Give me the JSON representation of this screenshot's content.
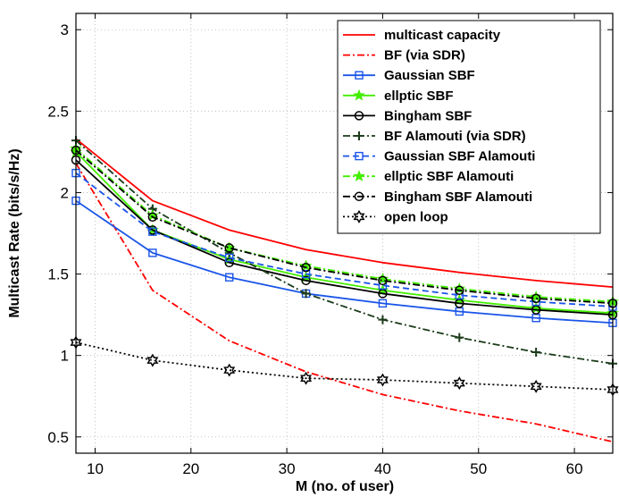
{
  "chart_data": {
    "type": "line",
    "title": "",
    "xlabel": "M (no. of user)",
    "ylabel": "Multicast Rate (bits/s/Hz)",
    "xlim": [
      8,
      64
    ],
    "ylim": [
      0.4,
      3.1
    ],
    "xticks": [
      10,
      20,
      30,
      40,
      50,
      60
    ],
    "yticks": [
      0.5,
      1,
      1.5,
      2,
      2.5,
      3
    ],
    "xtick_labels": [
      "10",
      "20",
      "30",
      "40",
      "50",
      "60"
    ],
    "ytick_labels": [
      "0.5",
      "1",
      "1.5",
      "2",
      "2.5",
      "3"
    ],
    "grid": true,
    "legend_position": "top-right",
    "x": [
      8,
      16,
      24,
      32,
      40,
      48,
      56,
      64
    ],
    "series": [
      {
        "name": "multicast capacity",
        "color": "#ff0000",
        "dash": "solid",
        "marker": "none",
        "values": [
          2.33,
          1.95,
          1.77,
          1.65,
          1.57,
          1.51,
          1.46,
          1.42
        ]
      },
      {
        "name": "BF (via SDR)",
        "color": "#ff0000",
        "dash": "dashdot",
        "marker": "none",
        "values": [
          2.18,
          1.4,
          1.09,
          0.9,
          0.76,
          0.66,
          0.58,
          0.47
        ]
      },
      {
        "name": "Gaussian SBF",
        "color": "#1a55e8",
        "dash": "solid",
        "marker": "square",
        "values": [
          1.95,
          1.63,
          1.48,
          1.38,
          1.32,
          1.27,
          1.23,
          1.2
        ]
      },
      {
        "name": "ellptic SBF",
        "color": "#44ee00",
        "dash": "solid",
        "marker": "star",
        "values": [
          2.25,
          1.77,
          1.59,
          1.48,
          1.4,
          1.34,
          1.29,
          1.26
        ]
      },
      {
        "name": "Bingham SBF",
        "color": "#000000",
        "dash": "solid",
        "marker": "circle",
        "values": [
          2.2,
          1.77,
          1.57,
          1.46,
          1.38,
          1.32,
          1.28,
          1.25
        ]
      },
      {
        "name": "BF Alamouti (via SDR)",
        "color": "#1a3b1a",
        "dash": "dashdot",
        "marker": "plus",
        "values": [
          2.32,
          1.9,
          1.63,
          1.38,
          1.22,
          1.11,
          1.02,
          0.95
        ]
      },
      {
        "name": "Gaussian SBF Alamouti",
        "color": "#1a55e8",
        "dash": "dashed",
        "marker": "square",
        "values": [
          2.12,
          1.76,
          1.6,
          1.5,
          1.43,
          1.37,
          1.33,
          1.3
        ]
      },
      {
        "name": "ellptic SBF Alamouti",
        "color": "#44ee00",
        "dash": "dashdot",
        "marker": "star",
        "values": [
          2.27,
          1.86,
          1.66,
          1.55,
          1.47,
          1.41,
          1.36,
          1.33
        ]
      },
      {
        "name": "Bingham SBF Alamouti",
        "color": "#000000",
        "dash": "dashdot",
        "marker": "circle",
        "values": [
          2.26,
          1.85,
          1.66,
          1.54,
          1.46,
          1.4,
          1.35,
          1.32
        ]
      },
      {
        "name": "open loop",
        "color": "#000000",
        "dash": "dotted",
        "marker": "hexagram",
        "values": [
          1.08,
          0.97,
          0.91,
          0.86,
          0.85,
          0.83,
          0.81,
          0.79
        ]
      }
    ]
  }
}
